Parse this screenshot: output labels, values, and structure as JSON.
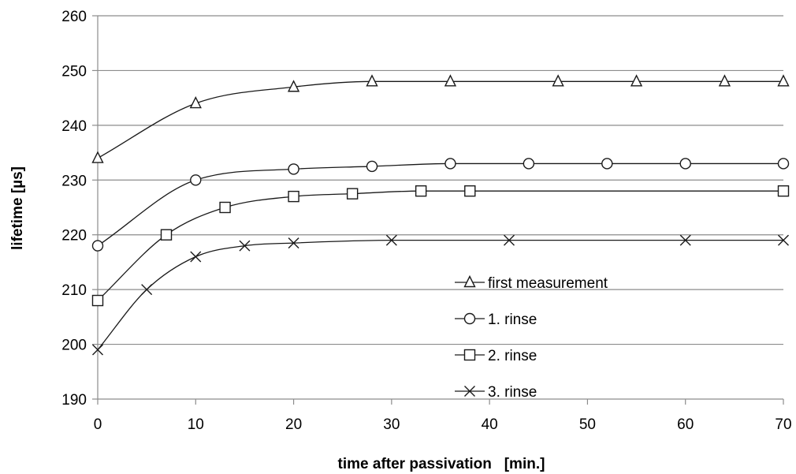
{
  "chart_data": {
    "type": "line",
    "xlabel": "time after passivation   [min.]",
    "ylabel": "lifetime [µs]",
    "xlim": [
      0,
      70
    ],
    "ylim": [
      190,
      260
    ],
    "xticks": [
      0,
      10,
      20,
      30,
      40,
      50,
      60,
      70
    ],
    "yticks": [
      190,
      200,
      210,
      220,
      230,
      240,
      250,
      260
    ],
    "grid": "horizontal",
    "legend_position": "lower-right",
    "series": [
      {
        "name": "first measurement",
        "marker": "triangle",
        "x": [
          0,
          10,
          20,
          28,
          36,
          47,
          55,
          64,
          70
        ],
        "y": [
          234,
          244,
          247,
          248,
          248,
          248,
          248,
          248,
          248
        ]
      },
      {
        "name": "1. rinse",
        "marker": "circle",
        "x": [
          0,
          10,
          20,
          28,
          36,
          44,
          52,
          60,
          70
        ],
        "y": [
          218,
          230,
          232,
          232.5,
          233,
          233,
          233,
          233,
          233
        ]
      },
      {
        "name": "2. rinse",
        "marker": "square",
        "x": [
          0,
          7,
          13,
          20,
          26,
          33,
          38,
          70
        ],
        "y": [
          208,
          220,
          225,
          227,
          227.5,
          228,
          228,
          228
        ]
      },
      {
        "name": "3. rinse",
        "marker": "x",
        "x": [
          0,
          5,
          10,
          15,
          20,
          30,
          42,
          60,
          70
        ],
        "y": [
          199,
          210,
          216,
          218,
          218.5,
          219,
          219,
          219,
          219
        ]
      }
    ]
  }
}
